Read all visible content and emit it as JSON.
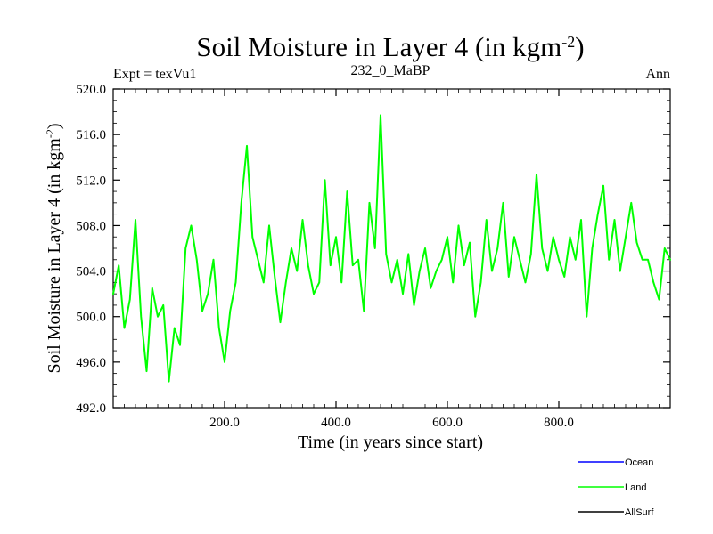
{
  "chart_data": {
    "type": "line",
    "title": "Soil Moisture in Layer 4 (in kgm",
    "title_sup": "-2",
    "title_end": ")",
    "subtitle_left": "Expt = texVu1",
    "subtitle_center": "232_0_MaBP",
    "subtitle_right": "Ann",
    "xlabel": "Time (in years since start)",
    "ylabel": "Soil Moisture in Layer 4 (in kgm",
    "ylabel_sup": "-2",
    "ylabel_end": ")",
    "xlim": [
      0,
      1000
    ],
    "ylim": [
      492,
      520
    ],
    "xticks": [
      200,
      400,
      600,
      800
    ],
    "xtick_labels": [
      "200.0",
      "400.0",
      "600.0",
      "800.0"
    ],
    "yticks": [
      492,
      496,
      500,
      504,
      508,
      512,
      516,
      520
    ],
    "ytick_labels": [
      "492.0",
      "496.0",
      "500.0",
      "504.0",
      "508.0",
      "512.0",
      "516.0",
      "520.0"
    ],
    "colors": {
      "Ocean": "#0000ff",
      "Land": "#00ff00",
      "AllSurf": "#000000"
    },
    "legend": [
      "Ocean",
      "Land",
      "AllSurf"
    ],
    "series": [
      {
        "name": "Land",
        "color": "#00ff00",
        "x": [
          0,
          10,
          20,
          30,
          40,
          50,
          60,
          70,
          80,
          90,
          100,
          110,
          120,
          130,
          140,
          150,
          160,
          170,
          180,
          190,
          200,
          210,
          220,
          230,
          240,
          250,
          260,
          270,
          280,
          290,
          300,
          310,
          320,
          330,
          340,
          350,
          360,
          370,
          380,
          390,
          400,
          410,
          420,
          430,
          440,
          450,
          460,
          470,
          480,
          490,
          500,
          510,
          520,
          530,
          540,
          550,
          560,
          570,
          580,
          590,
          600,
          610,
          620,
          630,
          640,
          650,
          660,
          670,
          680,
          690,
          700,
          710,
          720,
          730,
          740,
          750,
          760,
          770,
          780,
          790,
          800,
          810,
          820,
          830,
          840,
          850,
          860,
          870,
          880,
          890,
          900,
          910,
          920,
          930,
          940,
          950,
          960,
          970,
          980,
          990,
          1000
        ],
        "values": [
          502.0,
          504.5,
          499.0,
          501.5,
          508.5,
          500.0,
          495.2,
          502.5,
          500.0,
          501.0,
          494.3,
          499.0,
          497.5,
          506.0,
          508.0,
          505.0,
          500.5,
          502.0,
          505.0,
          499.0,
          496.0,
          500.5,
          503.0,
          510.0,
          515.0,
          507.0,
          505.0,
          503.0,
          508.0,
          503.5,
          499.5,
          503.0,
          506.0,
          504.0,
          508.5,
          504.5,
          502.0,
          503.0,
          512.0,
          504.5,
          507.0,
          503.0,
          511.0,
          504.5,
          505.0,
          500.5,
          510.0,
          506.0,
          517.7,
          505.5,
          503.0,
          505.0,
          502.0,
          505.5,
          501.0,
          504.0,
          506.0,
          502.5,
          504.0,
          505.0,
          507.0,
          503.0,
          508.0,
          504.5,
          506.5,
          500.0,
          503.0,
          508.5,
          504.0,
          506.0,
          510.0,
          503.5,
          507.0,
          505.0,
          503.0,
          505.5,
          512.5,
          506.0,
          504.0,
          507.0,
          505.0,
          503.5,
          507.0,
          505.0,
          508.5,
          500.0,
          506.0,
          509.0,
          511.5,
          505.0,
          508.5,
          504.0,
          507.0,
          510.0,
          506.5,
          505.0,
          505.0,
          503.0,
          501.5,
          506.0,
          505.0
        ]
      }
    ]
  }
}
